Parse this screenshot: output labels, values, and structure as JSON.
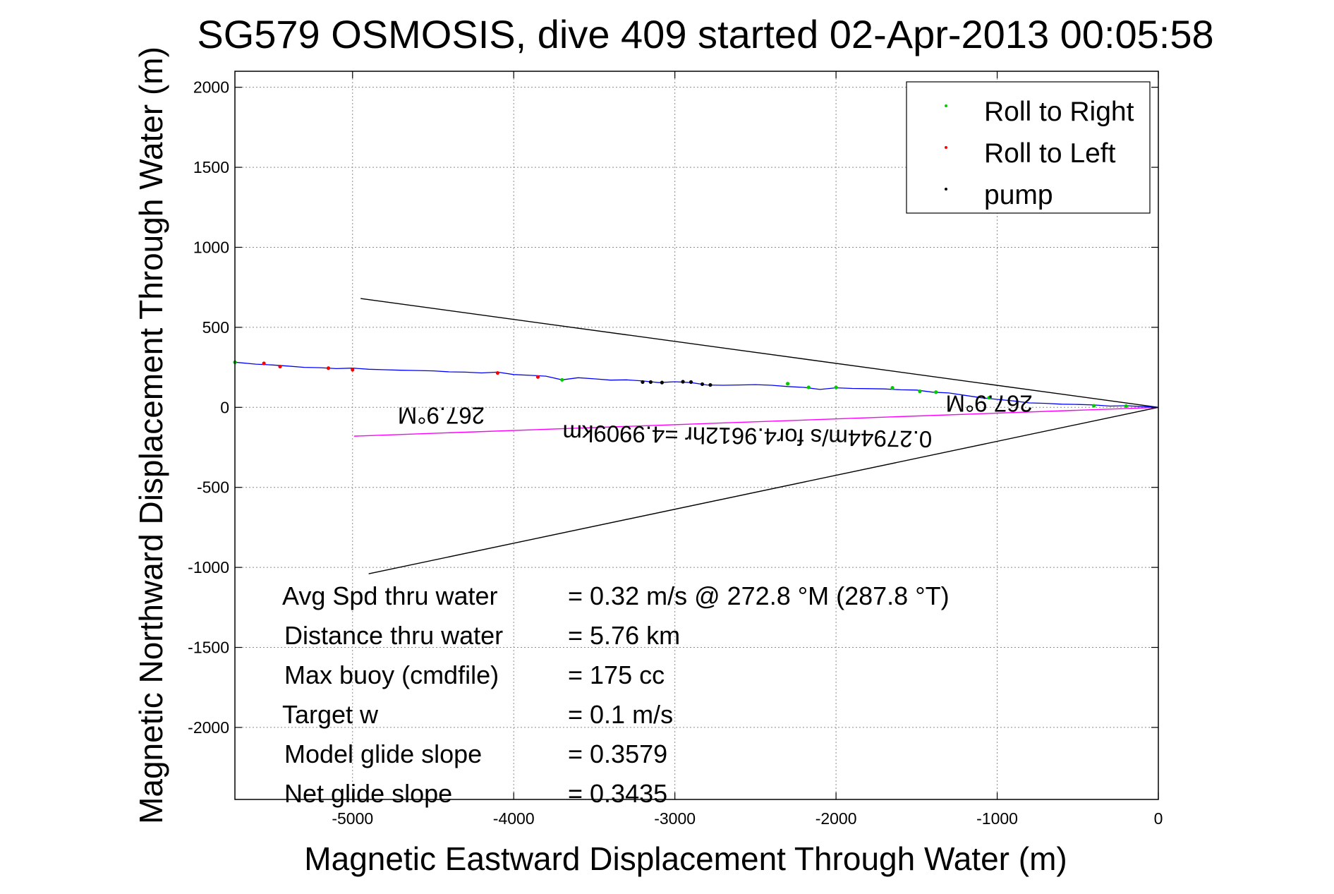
{
  "chart_data": {
    "type": "line",
    "title": "SG579 OSMOSIS, dive 409 started 02-Apr-2013 00:05:58",
    "xlabel": "Magnetic Eastward Displacement Through Water (m)",
    "ylabel": "Magnetic Northward Displacement Through Water (m)",
    "xlim": [
      -5730,
      0
    ],
    "ylim": [
      -2450,
      2100
    ],
    "xticks": [
      -5000,
      -4000,
      -3000,
      -2000,
      -1000,
      0
    ],
    "yticks": [
      2000,
      1500,
      1000,
      500,
      0,
      -500,
      -1000,
      -1500,
      -2000
    ],
    "grid": true,
    "legend_position": "top-right",
    "legend": [
      {
        "label": "Roll to Right",
        "color": "#00cc00"
      },
      {
        "label": "Roll to Left",
        "color": "#ff0000"
      },
      {
        "label": "pump",
        "color": "#000000"
      }
    ],
    "track": {
      "color": "#0000ff",
      "points": [
        [
          0,
          0
        ],
        [
          -100,
          5
        ],
        [
          -200,
          10
        ],
        [
          -300,
          8
        ],
        [
          -400,
          15
        ],
        [
          -500,
          18
        ],
        [
          -600,
          20
        ],
        [
          -700,
          25
        ],
        [
          -800,
          28
        ],
        [
          -900,
          40
        ],
        [
          -1000,
          50
        ],
        [
          -1100,
          60
        ],
        [
          -1200,
          75
        ],
        [
          -1300,
          90
        ],
        [
          -1400,
          95
        ],
        [
          -1500,
          108
        ],
        [
          -1600,
          110
        ],
        [
          -1700,
          115
        ],
        [
          -1800,
          117
        ],
        [
          -1900,
          118
        ],
        [
          -2000,
          122
        ],
        [
          -2100,
          112
        ],
        [
          -2200,
          125
        ],
        [
          -2300,
          130
        ],
        [
          -2400,
          138
        ],
        [
          -2500,
          142
        ],
        [
          -2600,
          140
        ],
        [
          -2700,
          138
        ],
        [
          -2800,
          140
        ],
        [
          -2900,
          155
        ],
        [
          -3000,
          160
        ],
        [
          -3100,
          155
        ],
        [
          -3200,
          165
        ],
        [
          -3300,
          172
        ],
        [
          -3400,
          170
        ],
        [
          -3500,
          178
        ],
        [
          -3600,
          185
        ],
        [
          -3700,
          172
        ],
        [
          -3800,
          195
        ],
        [
          -3900,
          200
        ],
        [
          -4000,
          205
        ],
        [
          -4100,
          220
        ],
        [
          -4200,
          215
        ],
        [
          -4300,
          220
        ],
        [
          -4400,
          222
        ],
        [
          -4500,
          228
        ],
        [
          -4600,
          230
        ],
        [
          -4700,
          232
        ],
        [
          -4800,
          235
        ],
        [
          -4900,
          238
        ],
        [
          -5000,
          245
        ],
        [
          -5100,
          242
        ],
        [
          -5200,
          248
        ],
        [
          -5300,
          250
        ],
        [
          -5400,
          258
        ],
        [
          -5500,
          265
        ],
        [
          -5600,
          270
        ],
        [
          -5730,
          282
        ]
      ]
    },
    "markers": {
      "roll_right": [
        [
          -5730,
          282
        ],
        [
          -3700,
          172
        ],
        [
          -2300,
          148
        ],
        [
          -2170,
          125
        ],
        [
          -2000,
          125
        ],
        [
          -1650,
          122
        ],
        [
          -1480,
          100
        ],
        [
          -1380,
          95
        ],
        [
          -1050,
          60
        ],
        [
          -400,
          10
        ],
        [
          -200,
          8
        ]
      ],
      "roll_left": [
        [
          -5550,
          275
        ],
        [
          -5450,
          255
        ],
        [
          -5150,
          245
        ],
        [
          -5000,
          235
        ],
        [
          -4100,
          215
        ],
        [
          -3850,
          190
        ]
      ],
      "pump": [
        [
          -3200,
          158
        ],
        [
          -3150,
          158
        ],
        [
          -3080,
          155
        ],
        [
          -2950,
          160
        ],
        [
          -2900,
          158
        ],
        [
          -2830,
          145
        ],
        [
          -2780,
          140
        ]
      ]
    },
    "reference_lines": [
      {
        "name": "upper-bound-line",
        "color": "#000000",
        "points": [
          [
            -4950,
            680
          ],
          [
            0,
            0
          ]
        ]
      },
      {
        "name": "lower-bound-line",
        "color": "#000000",
        "points": [
          [
            -4900,
            -1040
          ],
          [
            0,
            0
          ]
        ]
      },
      {
        "name": "mean-heading-line",
        "color": "#ff00ff",
        "points": [
          [
            -4990,
            -180
          ],
          [
            0,
            0
          ]
        ]
      }
    ],
    "annotations": [
      {
        "text": "267.9°M",
        "x": -4450,
        "y": 0,
        "rotation": 180
      },
      {
        "text": "267.9°M",
        "x": -1050,
        "y": 75,
        "rotation": 180
      },
      {
        "text": "0.27944m/s for4.9612hr =4.9909km",
        "x": -2550,
        "y": -130,
        "rotation": 181
      }
    ],
    "info_box": [
      {
        "label": "Avg Spd thru water",
        "value": "=  0.32 m/s @ 272.8 °M (287.8 °T)"
      },
      {
        "label": "Distance thru water",
        "value": "=  5.76 km"
      },
      {
        "label": "Max buoy (cmdfile)",
        "value": "= 175 cc"
      },
      {
        "label": "Target w",
        "value": "= 0.1 m/s"
      },
      {
        "label": "Model glide slope",
        "value": "= 0.3579"
      },
      {
        "label": "Net glide slope",
        "value": "= 0.3435"
      }
    ]
  }
}
